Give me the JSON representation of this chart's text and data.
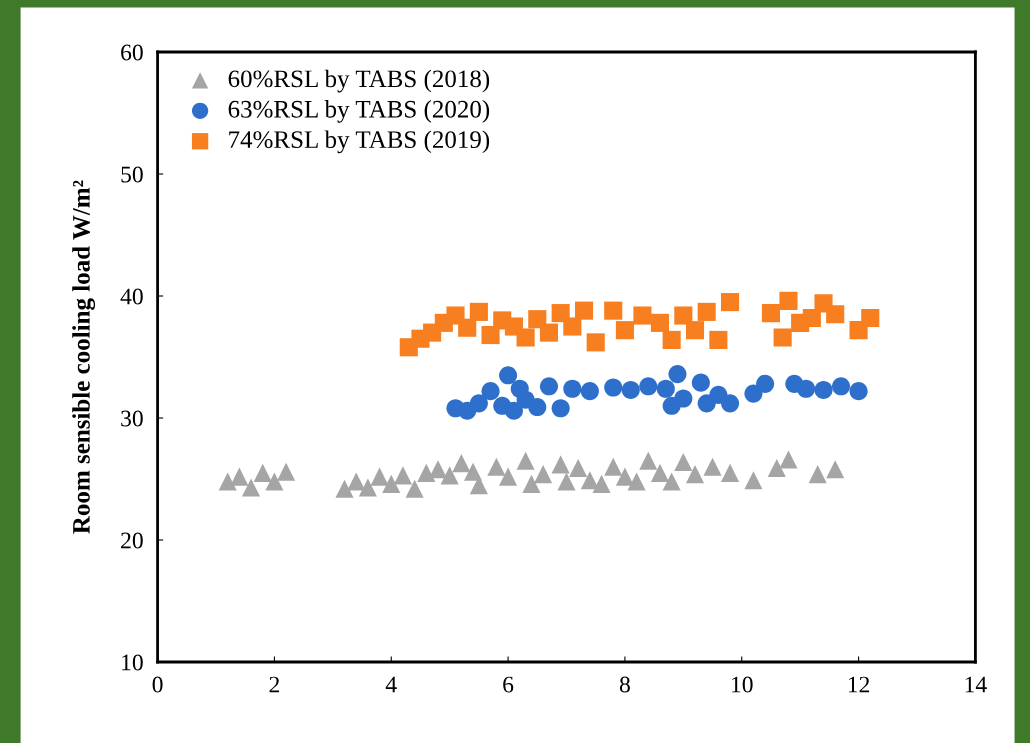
{
  "chart_data": {
    "type": "scatter",
    "ylabel": "Room sensible cooling load W/m²",
    "xlim": [
      0,
      14
    ],
    "xticks": [
      0,
      2,
      4,
      6,
      8,
      10,
      12,
      14
    ],
    "ylim": [
      10,
      60
    ],
    "yticks": [
      10,
      20,
      30,
      40,
      50,
      60
    ],
    "grid": false,
    "legend": "top left",
    "series": [
      {
        "name": "60%RSL by TABS (2018)",
        "color": "#a5a5a5",
        "marker": "triangle",
        "x": [
          1.2,
          1.4,
          1.6,
          1.8,
          2.0,
          2.2,
          3.2,
          3.4,
          3.6,
          3.8,
          4.0,
          4.2,
          4.4,
          4.6,
          4.8,
          5.0,
          5.2,
          5.4,
          5.5,
          5.8,
          6.0,
          6.3,
          6.4,
          6.6,
          6.9,
          7.0,
          7.2,
          7.4,
          7.6,
          7.8,
          8.0,
          8.2,
          8.4,
          8.6,
          8.8,
          9.0,
          9.2,
          9.5,
          9.8,
          10.2,
          10.6,
          10.8,
          11.3,
          11.6
        ],
        "values": [
          24.8,
          25.2,
          24.3,
          25.5,
          24.8,
          25.6,
          24.2,
          24.8,
          24.3,
          25.2,
          24.6,
          25.3,
          24.2,
          25.5,
          25.8,
          25.3,
          26.3,
          25.6,
          24.5,
          26.0,
          25.2,
          26.5,
          24.6,
          25.4,
          26.2,
          24.8,
          25.9,
          24.9,
          24.6,
          26.0,
          25.2,
          24.8,
          26.5,
          25.5,
          24.8,
          26.4,
          25.4,
          26.0,
          25.5,
          24.9,
          25.9,
          26.6,
          25.4,
          25.8
        ]
      },
      {
        "name": "63%RSL by TABS (2020)",
        "color": "#2e6fcc",
        "marker": "circle",
        "x": [
          5.1,
          5.3,
          5.5,
          5.7,
          5.9,
          6.0,
          6.1,
          6.2,
          6.3,
          6.5,
          6.7,
          6.9,
          7.1,
          7.4,
          7.8,
          8.1,
          8.4,
          8.7,
          8.8,
          8.9,
          9.0,
          9.3,
          9.4,
          9.6,
          9.8,
          10.2,
          10.4,
          10.9,
          11.1,
          11.4,
          11.7,
          12.0
        ],
        "values": [
          30.8,
          30.6,
          31.2,
          32.2,
          31.0,
          33.5,
          30.6,
          32.4,
          31.5,
          30.9,
          32.6,
          30.8,
          32.4,
          32.2,
          32.5,
          32.3,
          32.6,
          32.4,
          31.0,
          33.6,
          31.6,
          32.9,
          31.2,
          31.9,
          31.2,
          32.0,
          32.8,
          32.8,
          32.4,
          32.3,
          32.6,
          32.2
        ]
      },
      {
        "name": "74%RSL by TABS (2019)",
        "color": "#f77f1f",
        "marker": "square",
        "x": [
          4.3,
          4.5,
          4.7,
          4.9,
          5.1,
          5.3,
          5.5,
          5.7,
          5.9,
          6.1,
          6.3,
          6.5,
          6.7,
          6.9,
          7.1,
          7.3,
          7.5,
          7.8,
          8.0,
          8.3,
          8.6,
          8.8,
          9.0,
          9.2,
          9.4,
          9.6,
          9.8,
          10.5,
          10.7,
          10.8,
          11.0,
          11.2,
          11.4,
          11.6,
          12.0,
          12.2
        ],
        "values": [
          35.8,
          36.5,
          37.0,
          37.8,
          38.4,
          37.4,
          38.7,
          36.8,
          38.0,
          37.5,
          36.6,
          38.1,
          37.0,
          38.6,
          37.5,
          38.8,
          36.2,
          38.8,
          37.2,
          38.4,
          37.8,
          36.4,
          38.4,
          37.2,
          38.7,
          36.4,
          39.5,
          38.6,
          36.6,
          39.6,
          37.8,
          38.2,
          39.4,
          38.5,
          37.2,
          38.2
        ]
      }
    ]
  }
}
